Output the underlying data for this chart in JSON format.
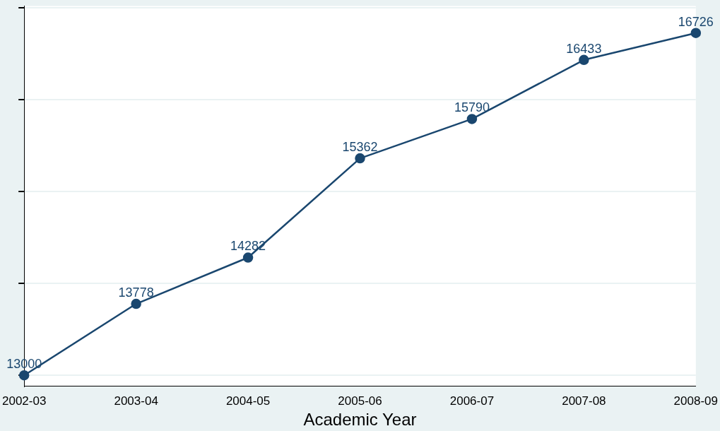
{
  "chart_data": {
    "type": "line",
    "xlabel": "Academic Year",
    "categories": [
      "2002-03",
      "2003-04",
      "2004-05",
      "2005-06",
      "2006-07",
      "2007-08",
      "2008-09"
    ],
    "series": [
      {
        "color": "#1a476f",
        "values": [
          13000,
          13778,
          14282,
          15362,
          15790,
          16433,
          16726
        ]
      }
    ],
    "ylim": [
      12880,
      17020
    ],
    "yticks": [
      {
        "value": 13000,
        "label": null
      },
      {
        "value": 14000,
        "label": null
      },
      {
        "value": 15000,
        "label": null
      },
      {
        "value": 16000,
        "label": null
      },
      {
        "value": 17000,
        "label": null
      }
    ],
    "tick_labels": "x",
    "grid": "y",
    "legend": false,
    "marker": "circle",
    "line_style": "solid",
    "data_labels": true
  }
}
